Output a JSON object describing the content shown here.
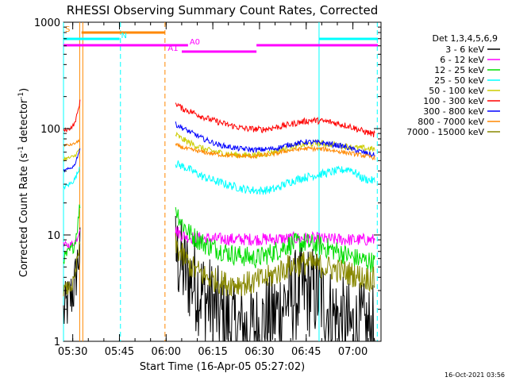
{
  "chart_data": {
    "type": "line",
    "title": "RHESSI Observing Summary Count Rates, Corrected",
    "xlabel": "Start Time (16-Apr-05 05:27:02)",
    "ylabel_parts": [
      "Corrected Count Rate (s",
      "-1",
      " detector",
      "-1",
      ")"
    ],
    "y_scale": "log",
    "ylim": [
      1,
      1000
    ],
    "xlim_min": [
      0,
      102
    ],
    "x_tick_labels": [
      "05:30",
      "05:45",
      "06:00",
      "06:15",
      "06:30",
      "06:45",
      "07:00"
    ],
    "x_tick_min": [
      2.97,
      17.97,
      32.97,
      47.97,
      62.97,
      77.97,
      92.97
    ],
    "y_tick_labels": [
      "1",
      "10",
      "100",
      "1000"
    ],
    "y_tick_values": [
      1,
      10,
      100,
      1000
    ],
    "legend_header": "Det 1,3,4,5,6,9",
    "series": [
      {
        "name": "3 - 6 keV",
        "color": "#000000",
        "seg1": [
          [
            0,
            1.8
          ],
          [
            2,
            2.5
          ],
          [
            3.5,
            3.2
          ],
          [
            4.5,
            5.5
          ],
          [
            5.3,
            7
          ]
        ],
        "seg2": [
          [
            36,
            7
          ],
          [
            38,
            5
          ],
          [
            42,
            3.5
          ],
          [
            46,
            2.5
          ],
          [
            50,
            1.8
          ],
          [
            55,
            1.3
          ],
          [
            62,
            1.3
          ],
          [
            68,
            1.8
          ],
          [
            72,
            2.5
          ],
          [
            78,
            3
          ],
          [
            82,
            2.8
          ],
          [
            86,
            1.8
          ],
          [
            92,
            1.3
          ],
          [
            96,
            1.3
          ],
          [
            100,
            1.2
          ]
        ],
        "noise": 0.45
      },
      {
        "name": "6 - 12 keV",
        "color": "#ff00ff",
        "seg1": [
          [
            0,
            8
          ],
          [
            2,
            8
          ],
          [
            3.5,
            8.5
          ],
          [
            4.5,
            9.5
          ],
          [
            5.3,
            12
          ]
        ],
        "seg2": [
          [
            36,
            11
          ],
          [
            38,
            10
          ],
          [
            41,
            9.5
          ],
          [
            46,
            9.2
          ],
          [
            55,
            9.1
          ],
          [
            62,
            9.1
          ],
          [
            70,
            9.2
          ],
          [
            78,
            9.3
          ],
          [
            86,
            9.1
          ],
          [
            94,
            9
          ],
          [
            100,
            9
          ]
        ],
        "noise": 0.06
      },
      {
        "name": "12 - 25 keV",
        "color": "#00dd00",
        "seg1": [
          [
            0,
            6
          ],
          [
            2,
            7
          ],
          [
            3.5,
            8
          ],
          [
            4.5,
            12
          ],
          [
            5.3,
            20
          ]
        ],
        "seg2": [
          [
            36,
            18
          ],
          [
            38,
            13
          ],
          [
            41,
            10
          ],
          [
            46,
            8
          ],
          [
            55,
            6.5
          ],
          [
            62,
            6
          ],
          [
            68,
            7
          ],
          [
            72,
            8
          ],
          [
            76,
            8.5
          ],
          [
            82,
            8
          ],
          [
            88,
            7
          ],
          [
            94,
            6
          ],
          [
            100,
            5.5
          ]
        ],
        "noise": 0.1
      },
      {
        "name": "25 - 50 keV",
        "color": "#00ffff",
        "seg1": [
          [
            0,
            28
          ],
          [
            2,
            30
          ],
          [
            3.5,
            33
          ],
          [
            4.5,
            38
          ],
          [
            5.3,
            45
          ]
        ],
        "seg2": [
          [
            36,
            47
          ],
          [
            40,
            42
          ],
          [
            45,
            35
          ],
          [
            52,
            30
          ],
          [
            58,
            27
          ],
          [
            63,
            26
          ],
          [
            68,
            27
          ],
          [
            72,
            31
          ],
          [
            76,
            34
          ],
          [
            82,
            37
          ],
          [
            88,
            40
          ],
          [
            92,
            42
          ],
          [
            96,
            34
          ],
          [
            100,
            32
          ]
        ],
        "noise": 0.04
      },
      {
        "name": "50 - 100 keV",
        "color": "#cccc00",
        "seg1": [
          [
            0,
            52
          ],
          [
            2,
            53
          ],
          [
            3.5,
            55
          ],
          [
            4.5,
            60
          ],
          [
            5.3,
            65
          ]
        ],
        "seg2": [
          [
            36,
            88
          ],
          [
            38,
            80
          ],
          [
            42,
            70
          ],
          [
            46,
            63
          ],
          [
            52,
            58
          ],
          [
            58,
            56
          ],
          [
            64,
            57
          ],
          [
            70,
            63
          ],
          [
            76,
            70
          ],
          [
            82,
            73
          ],
          [
            88,
            70
          ],
          [
            94,
            66
          ],
          [
            100,
            64
          ]
        ],
        "noise": 0.03
      },
      {
        "name": "100 - 300 keV",
        "color": "#ff0000",
        "seg1": [
          [
            0,
            95
          ],
          [
            2,
            100
          ],
          [
            3.5,
            110
          ],
          [
            4.5,
            140
          ],
          [
            5.3,
            180
          ]
        ],
        "seg2": [
          [
            36,
            175
          ],
          [
            38,
            155
          ],
          [
            42,
            140
          ],
          [
            46,
            125
          ],
          [
            52,
            110
          ],
          [
            58,
            100
          ],
          [
            64,
            98
          ],
          [
            70,
            105
          ],
          [
            76,
            115
          ],
          [
            80,
            120
          ],
          [
            86,
            115
          ],
          [
            92,
            105
          ],
          [
            96,
            95
          ],
          [
            100,
            88
          ]
        ],
        "noise": 0.03
      },
      {
        "name": "300 - 800 keV",
        "color": "#0000ff",
        "seg1": [
          [
            0,
            40
          ],
          [
            2,
            42
          ],
          [
            3.5,
            45
          ],
          [
            4.5,
            55
          ],
          [
            5.3,
            65
          ]
        ],
        "seg2": [
          [
            36,
            110
          ],
          [
            40,
            95
          ],
          [
            45,
            80
          ],
          [
            50,
            70
          ],
          [
            56,
            65
          ],
          [
            62,
            63
          ],
          [
            68,
            65
          ],
          [
            72,
            70
          ],
          [
            78,
            75
          ],
          [
            84,
            73
          ],
          [
            90,
            68
          ],
          [
            96,
            60
          ],
          [
            100,
            56
          ]
        ],
        "noise": 0.025
      },
      {
        "name": "800 - 7000 keV",
        "color": "#ff8800",
        "seg1": [
          [
            0,
            70
          ],
          [
            2,
            70
          ],
          [
            3.5,
            72
          ],
          [
            4.5,
            75
          ],
          [
            5.3,
            80
          ]
        ],
        "seg2": [
          [
            36,
            70
          ],
          [
            40,
            64
          ],
          [
            45,
            60
          ],
          [
            50,
            57
          ],
          [
            56,
            55
          ],
          [
            62,
            55
          ],
          [
            68,
            58
          ],
          [
            72,
            62
          ],
          [
            78,
            65
          ],
          [
            84,
            64
          ],
          [
            90,
            60
          ],
          [
            96,
            56
          ],
          [
            100,
            53
          ]
        ],
        "noise": 0.02
      },
      {
        "name": "7000 - 15000 keV",
        "color": "#888800",
        "seg1": [
          [
            0,
            3
          ],
          [
            2,
            3.2
          ],
          [
            3.5,
            3.6
          ],
          [
            4.5,
            6
          ],
          [
            5.3,
            8
          ]
        ],
        "seg2": [
          [
            36,
            8
          ],
          [
            38,
            6.5
          ],
          [
            41,
            5
          ],
          [
            46,
            4
          ],
          [
            52,
            3.5
          ],
          [
            60,
            3.5
          ],
          [
            66,
            4
          ],
          [
            72,
            5
          ],
          [
            78,
            5.5
          ],
          [
            84,
            5
          ],
          [
            90,
            4.5
          ],
          [
            96,
            4
          ],
          [
            100,
            3.8
          ]
        ],
        "noise": 0.12
      }
    ],
    "flags": [
      {
        "label": "S",
        "color": "#ff8800",
        "segments": [
          [
            5.8,
            32.5
          ]
        ],
        "label_min": 0.5,
        "level": 0
      },
      {
        "label": "N",
        "color": "#00ffff",
        "segments": [
          [
            0,
            18
          ],
          [
            82,
            101
          ]
        ],
        "label_min": 18.5,
        "level": 1
      },
      {
        "label": "A0",
        "color": "#ff00ff",
        "segments": [
          [
            0,
            40
          ],
          [
            62,
            101
          ]
        ],
        "label_min": 40.5,
        "level": 2
      },
      {
        "label": "A1",
        "color": "#ff00ff",
        "segments": [
          [
            38,
            62
          ]
        ],
        "label_min": 33.5,
        "level": 3
      }
    ],
    "vlines": [
      {
        "min": 0,
        "style": "solid",
        "color": "#00ffff"
      },
      {
        "min": 5.2,
        "style": "solid",
        "color": "#ff8800"
      },
      {
        "min": 6.2,
        "style": "solid",
        "color": "#ff8800"
      },
      {
        "min": 18.3,
        "style": "dashed",
        "color": "#00ffff"
      },
      {
        "min": 32.6,
        "style": "dashed",
        "color": "#ff8800"
      },
      {
        "min": 82.1,
        "style": "solid",
        "color": "#00ffff"
      },
      {
        "min": 100.8,
        "style": "dashed",
        "color": "#00ffff"
      }
    ],
    "footer": "16-Oct-2021 03:56"
  }
}
